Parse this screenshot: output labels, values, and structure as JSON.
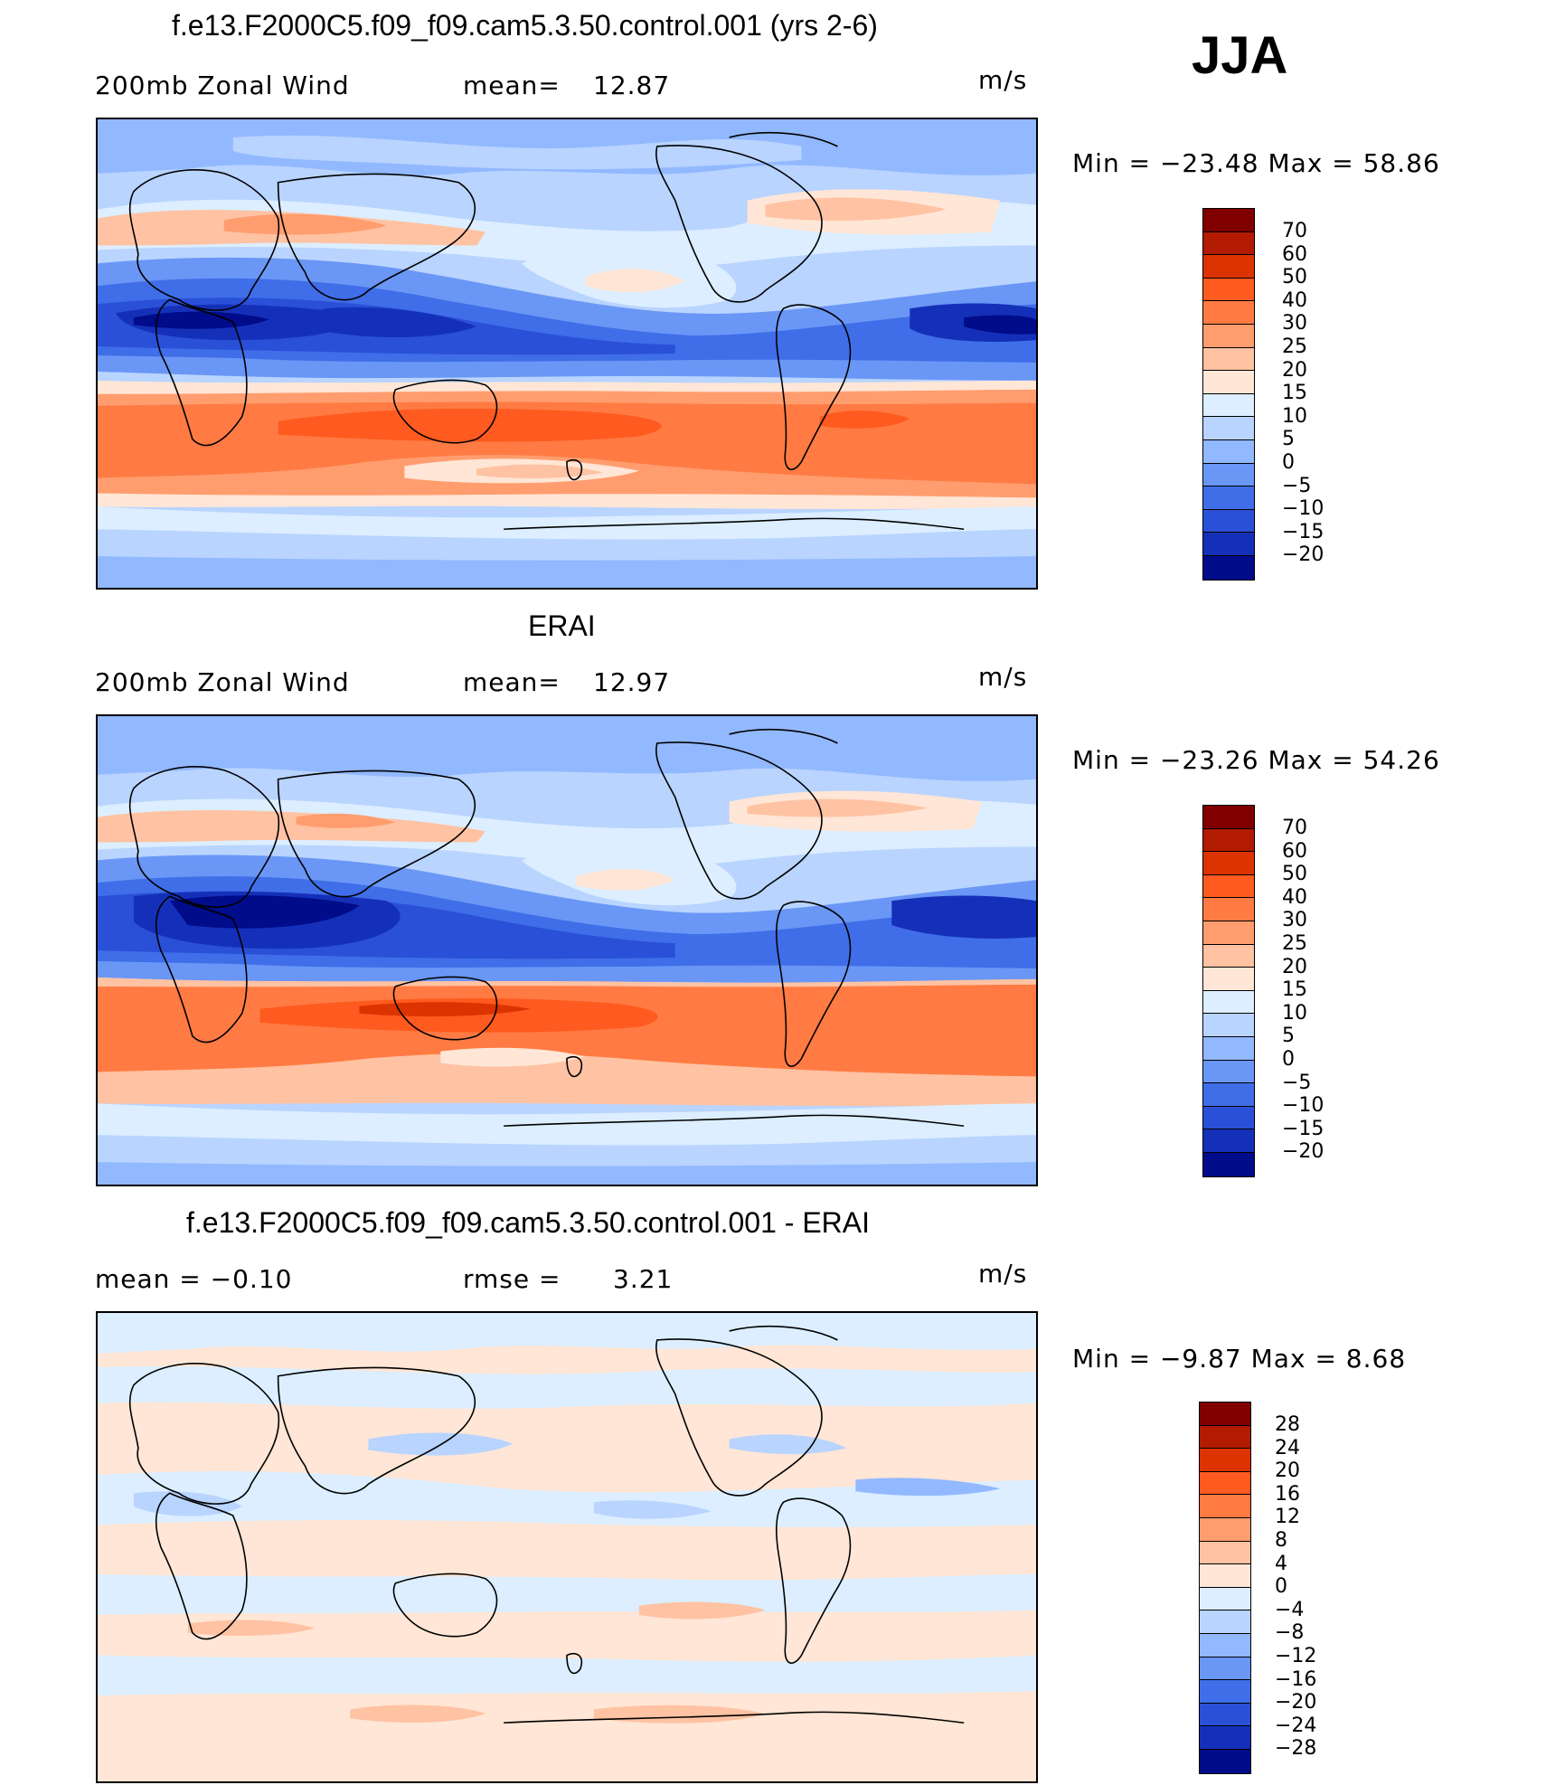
{
  "season": "JJA",
  "panels": [
    {
      "id": "model",
      "title": "f.e13.F2000C5.f09_f09.cam5.3.50.control.001 (yrs 2-6)",
      "left_label": "200mb Zonal Wind",
      "stat_label": "mean=",
      "stat_value": "12.87",
      "units": "m/s",
      "minmax": "Min = −23.48 Max =  58.86",
      "levels": [
        "70",
        "60",
        "50",
        "40",
        "30",
        "25",
        "20",
        "15",
        "10",
        "5",
        "0",
        "−5",
        "−10",
        "−15",
        "−20"
      ]
    },
    {
      "id": "obs",
      "title": "ERAI",
      "left_label": "200mb Zonal Wind",
      "stat_label": "mean=",
      "stat_value": "12.97",
      "units": "m/s",
      "minmax": "Min = −23.26 Max =  54.26",
      "levels": [
        "70",
        "60",
        "50",
        "40",
        "30",
        "25",
        "20",
        "15",
        "10",
        "5",
        "0",
        "−5",
        "−10",
        "−15",
        "−20"
      ]
    },
    {
      "id": "diff",
      "title": "f.e13.F2000C5.f09_f09.cam5.3.50.control.001 - ERAI",
      "left_label": "mean =   −0.10",
      "stat_label": "rmse =",
      "stat_value": "3.21",
      "units": "m/s",
      "minmax": "Min =   −9.87 Max =    8.68",
      "levels": [
        "28",
        "24",
        "20",
        "16",
        "12",
        "8",
        "4",
        "0",
        "−4",
        "−8",
        "−12",
        "−16",
        "−20",
        "−24",
        "−28"
      ]
    }
  ],
  "colors": {
    "colorbar_16": [
      "#800000",
      "#b31b00",
      "#dc3300",
      "#ff5a1f",
      "#ff7b43",
      "#ff9d6f",
      "#ffc2a2",
      "#ffe6d6",
      "#dceeff",
      "#b8d4ff",
      "#92b8ff",
      "#6a96f5",
      "#3f6ee8",
      "#2a50d8",
      "#1530b8",
      "#000c8a"
    ],
    "colorbar_diff": [
      "#800000",
      "#b31b00",
      "#dc3300",
      "#ff5a1f",
      "#ff7b43",
      "#ff9d6f",
      "#ffc2a2",
      "#ffe6d6",
      "#dceeff",
      "#b8d4ff",
      "#92b8ff",
      "#6a96f5",
      "#3f6ee8",
      "#2a50d8",
      "#1530b8",
      "#000c8a"
    ]
  }
}
